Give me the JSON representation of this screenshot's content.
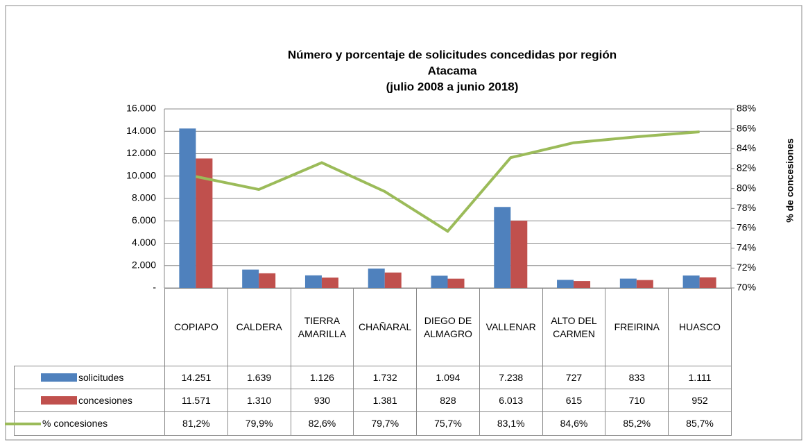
{
  "chart_data": {
    "type": "bar",
    "title": [
      "Número y porcentaje de solicitudes concedidas por región",
      "Atacama",
      "(julio 2008 a junio 2018)"
    ],
    "categories": [
      "COPIAPO",
      "CALDERA",
      "TIERRA AMARILLA",
      "CHAÑARAL",
      "DIEGO DE ALMAGRO",
      "VALLENAR",
      "ALTO DEL CARMEN",
      "FREIRINA",
      "HUASCO"
    ],
    "series": [
      {
        "name": "solicitudes",
        "type": "bar",
        "color": "#4f81bd",
        "values": [
          14251,
          1639,
          1126,
          1732,
          1094,
          7238,
          727,
          833,
          1111
        ],
        "value_labels": [
          "14.251",
          "1.639",
          "1.126",
          "1.732",
          "1.094",
          "7.238",
          "727",
          "833",
          "1.111"
        ]
      },
      {
        "name": "concesiones",
        "type": "bar",
        "color": "#c0504d",
        "values": [
          11571,
          1310,
          930,
          1381,
          828,
          6013,
          615,
          710,
          952
        ],
        "value_labels": [
          "11.571",
          "1.310",
          "930",
          "1.381",
          "828",
          "6.013",
          "615",
          "710",
          "952"
        ]
      },
      {
        "name": "% concesiones",
        "type": "line",
        "axis": "y2",
        "color": "#9bbb59",
        "values": [
          81.2,
          79.9,
          82.6,
          79.7,
          75.7,
          83.1,
          84.6,
          85.2,
          85.7
        ],
        "value_labels": [
          "81,2%",
          "79,9%",
          "82,6%",
          "79,7%",
          "75,7%",
          "83,1%",
          "84,6%",
          "85,2%",
          "85,7%"
        ]
      }
    ],
    "ylim": [
      0,
      16000
    ],
    "yticks": [
      {
        "value": 0,
        "label": "-"
      },
      {
        "value": 2000,
        "label": "2.000"
      },
      {
        "value": 4000,
        "label": "4.000"
      },
      {
        "value": 6000,
        "label": "6.000"
      },
      {
        "value": 8000,
        "label": "8.000"
      },
      {
        "value": 10000,
        "label": "10.000"
      },
      {
        "value": 12000,
        "label": "12.000"
      },
      {
        "value": 14000,
        "label": "14.000"
      },
      {
        "value": 16000,
        "label": "16.000"
      }
    ],
    "y2lim": [
      70,
      88
    ],
    "y2ticks": [
      {
        "value": 70,
        "label": "70%"
      },
      {
        "value": 72,
        "label": "72%"
      },
      {
        "value": 74,
        "label": "74%"
      },
      {
        "value": 76,
        "label": "76%"
      },
      {
        "value": 78,
        "label": "78%"
      },
      {
        "value": 80,
        "label": "80%"
      },
      {
        "value": 82,
        "label": "82%"
      },
      {
        "value": 84,
        "label": "84%"
      },
      {
        "value": 86,
        "label": "86%"
      },
      {
        "value": 88,
        "label": "88%"
      }
    ],
    "y2label": "% de concesiones",
    "grid": true
  }
}
